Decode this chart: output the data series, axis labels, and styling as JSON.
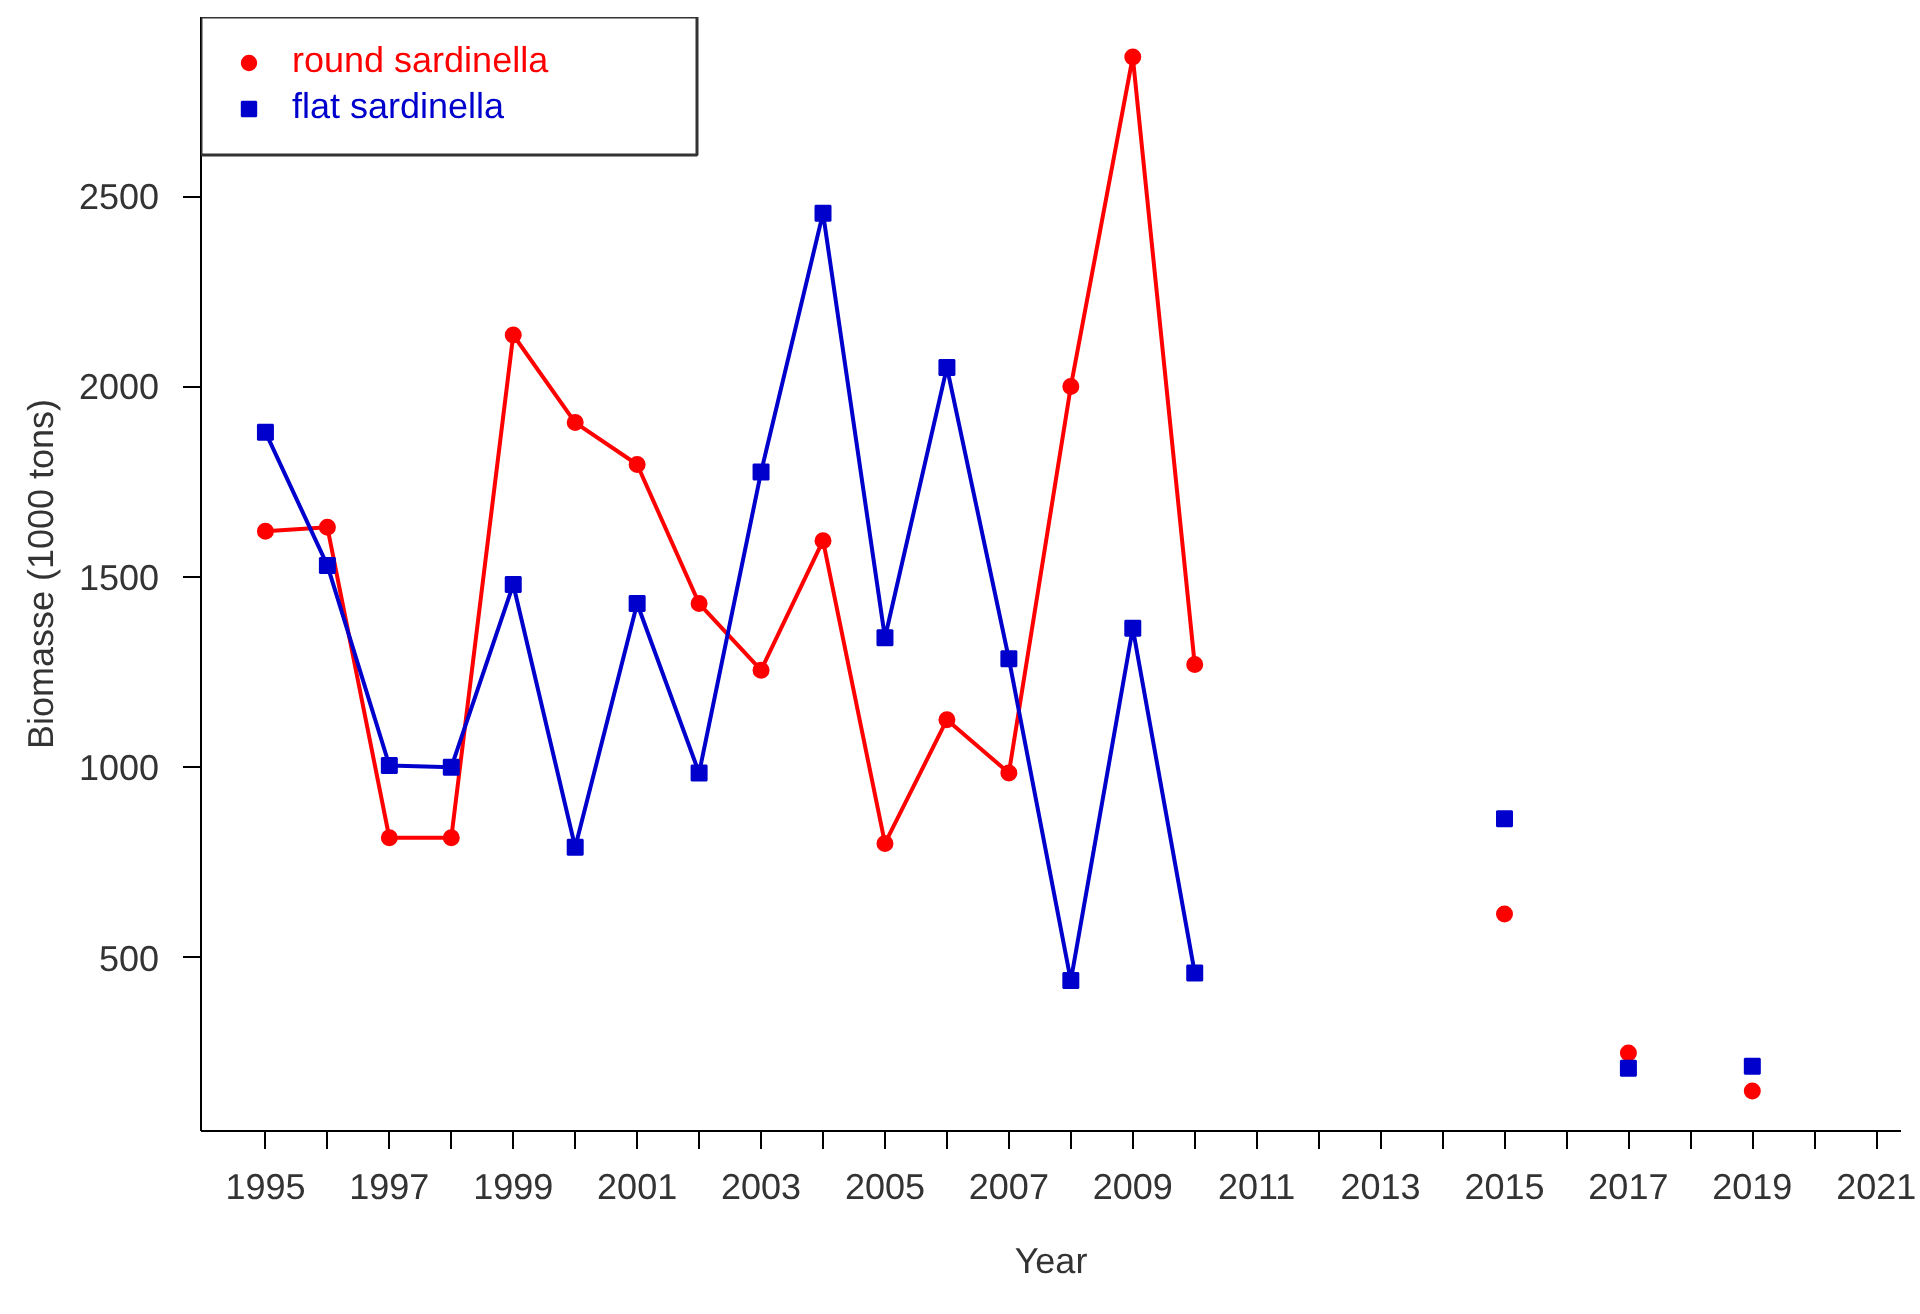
{
  "chart_data": {
    "type": "line",
    "xlabel": "Year",
    "ylabel": "Biomasse (1000 tons)",
    "x": [
      1995,
      1996,
      1997,
      1998,
      1999,
      2000,
      2001,
      2002,
      2003,
      2004,
      2005,
      2006,
      2007,
      2008,
      2009,
      2010,
      2011,
      2012,
      2013,
      2014,
      2015,
      2016,
      2017,
      2018,
      2019
    ],
    "series": [
      {
        "name": "round sardinella",
        "color": "#ff0000",
        "marker": "circle",
        "values": [
          1620,
          1630,
          815,
          815,
          2135,
          1905,
          1795,
          1430,
          1255,
          1595,
          800,
          1125,
          985,
          2000,
          2865,
          1270,
          null,
          null,
          null,
          null,
          615,
          null,
          250,
          null,
          150
        ]
      },
      {
        "name": "flat sardinella",
        "color": "#0000cd",
        "marker": "square",
        "values": [
          1880,
          1530,
          1005,
          1000,
          1480,
          790,
          1430,
          985,
          1775,
          2455,
          1340,
          2050,
          1285,
          440,
          1365,
          460,
          null,
          null,
          null,
          null,
          865,
          null,
          210,
          null,
          215
        ]
      }
    ],
    "xlim": [
      1993.96,
      2021.4
    ],
    "ylim": [
      45,
      2970
    ],
    "xticks": [
      1995,
      {
        "value": 1996,
        "label": null
      },
      1997,
      {
        "value": 1998,
        "label": null
      },
      1999,
      {
        "value": 2000,
        "label": null
      },
      2001,
      {
        "value": 2002,
        "label": null
      },
      2003,
      {
        "value": 2004,
        "label": null
      },
      2005,
      {
        "value": 2006,
        "label": null
      },
      2007,
      {
        "value": 2008,
        "label": null
      },
      2009,
      {
        "value": 2010,
        "label": null
      },
      2011,
      {
        "value": 2012,
        "label": null
      },
      2013,
      {
        "value": 2014,
        "label": null
      },
      2015,
      {
        "value": 2016,
        "label": null
      },
      2017,
      {
        "value": 2018,
        "label": null
      },
      2019,
      {
        "value": 2020,
        "label": null
      },
      2021
    ],
    "yticks": [
      500,
      1000,
      1500,
      2000,
      2500
    ],
    "grid": false,
    "legend": "top left",
    "line_style": "solid"
  }
}
